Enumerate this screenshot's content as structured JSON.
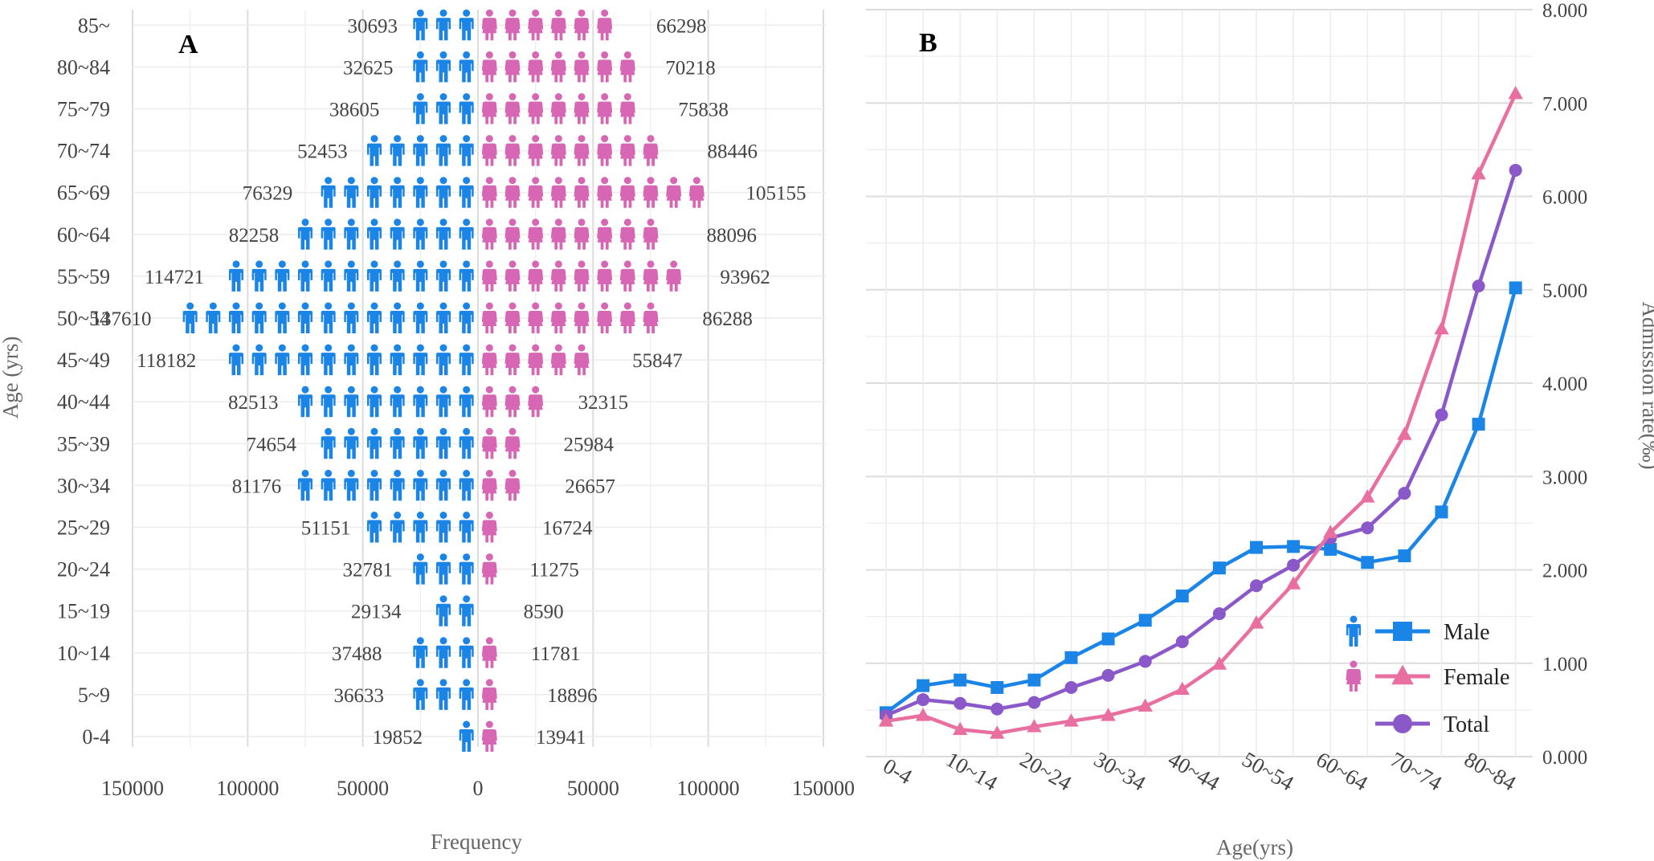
{
  "colors": {
    "male": "#1a85e6",
    "female": "#d766b4",
    "female_line": "#e86fa0",
    "total": "#8a58c8",
    "grid": "#e3e3e3",
    "text": "#444444"
  },
  "icons": {
    "male": "male-person-icon",
    "female": "female-person-icon"
  },
  "chart_data": [
    {
      "panel": "A",
      "type": "bar",
      "subtype": "population-pyramid-pictogram",
      "title": "",
      "xlabel": "Frequency",
      "ylabel": "Age (yrs)",
      "xlim": [
        -150000,
        150000
      ],
      "xticks": [
        -150000,
        -100000,
        -50000,
        0,
        50000,
        100000,
        150000
      ],
      "xtick_labels": [
        "150000",
        "100000",
        "50000",
        "0",
        "50000",
        "100000",
        "150000"
      ],
      "units_per_icon": 10000,
      "categories": [
        "0-4",
        "5~9",
        "10~14",
        "15~19",
        "20~24",
        "25~29",
        "30~34",
        "35~39",
        "40~44",
        "45~49",
        "50~54",
        "55~59",
        "60~64",
        "65~69",
        "70~74",
        "75~79",
        "80~84",
        "85~"
      ],
      "series": [
        {
          "name": "Male",
          "values": [
            19852,
            36633,
            37488,
            29134,
            32781,
            51151,
            81176,
            74654,
            82513,
            118182,
            137610,
            114721,
            82258,
            76329,
            52453,
            38605,
            32625,
            30693
          ],
          "labels": [
            "19852",
            "36633",
            "37488",
            "29134",
            "32781",
            "51151",
            "81176",
            "74654",
            "82513",
            "118182",
            "137610",
            "114721",
            "82258",
            "76329",
            "52453",
            "38605",
            "32625",
            "30693"
          ]
        },
        {
          "name": "Female",
          "values": [
            13941,
            18896,
            11781,
            8590,
            11275,
            16724,
            26657,
            25984,
            32315,
            55847,
            86288,
            93962,
            88096,
            105155,
            88446,
            75838,
            70218,
            66298
          ],
          "labels": [
            "13941",
            "18896",
            "11781",
            "8590",
            "11275",
            "16724",
            "26657",
            "25984",
            "32315",
            "55847",
            "86288",
            "93962",
            "88096",
            "105155",
            "88446",
            "75838",
            "70218",
            "66298"
          ]
        }
      ]
    },
    {
      "panel": "B",
      "type": "line",
      "title": "",
      "xlabel": "Age(yrs)",
      "ylabel": "Admission rate(‰)",
      "ylim": [
        0,
        8
      ],
      "yticks": [
        "0.000",
        "1.000",
        "2.000",
        "3.000",
        "4.000",
        "5.000",
        "6.000",
        "7.000",
        "8.000"
      ],
      "categories": [
        "0-4",
        "5~9",
        "10~14",
        "15~19",
        "20~24",
        "25~29",
        "30~34",
        "35~39",
        "40~44",
        "45~49",
        "50~54",
        "55~59",
        "60~64",
        "65~69",
        "70~74",
        "75~79",
        "80~84",
        "85~"
      ],
      "xtick_labels": [
        "0-4",
        "10~14",
        "20~24",
        "30~34",
        "40~44",
        "50~54",
        "60~64",
        "70~74",
        "80~84"
      ],
      "legend": {
        "position": "bottom-right"
      },
      "series": [
        {
          "name": "Male",
          "marker": "square",
          "values": [
            0.47,
            0.76,
            0.82,
            0.74,
            0.82,
            1.06,
            1.26,
            1.46,
            1.72,
            2.02,
            2.24,
            2.25,
            2.22,
            2.08,
            2.15,
            2.62,
            3.56,
            5.02
          ]
        },
        {
          "name": "Female",
          "marker": "triangle",
          "values": [
            0.38,
            0.44,
            0.29,
            0.25,
            0.32,
            0.38,
            0.44,
            0.54,
            0.72,
            0.99,
            1.43,
            1.85,
            2.4,
            2.78,
            3.45,
            4.58,
            6.24,
            7.1
          ]
        },
        {
          "name": "Total",
          "marker": "circle",
          "values": [
            0.44,
            0.61,
            0.57,
            0.51,
            0.58,
            0.74,
            0.87,
            1.02,
            1.23,
            1.53,
            1.83,
            2.05,
            2.34,
            2.45,
            2.82,
            3.66,
            5.04,
            6.28
          ]
        }
      ]
    }
  ]
}
